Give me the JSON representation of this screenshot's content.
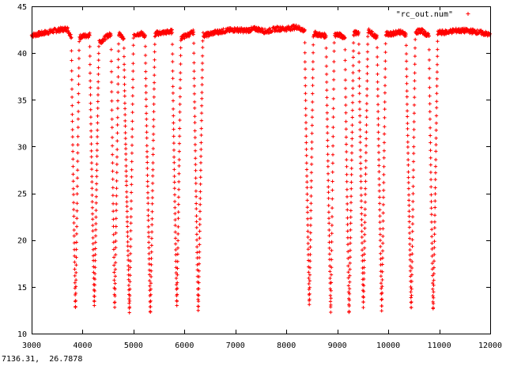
{
  "status": {
    "coordinates": "7136.31,  26.7878"
  },
  "chart_data": {
    "type": "scatter",
    "title": "",
    "xlabel": "",
    "ylabel": "",
    "xlim": [
      3000,
      12000
    ],
    "ylim": [
      10,
      45
    ],
    "x_ticks": [
      3000,
      4000,
      5000,
      6000,
      7000,
      8000,
      9000,
      10000,
      11000,
      12000
    ],
    "y_ticks": [
      10,
      15,
      20,
      25,
      30,
      35,
      40,
      45
    ],
    "grid": false,
    "legend_position": "top-right",
    "marker": "+",
    "series": [
      {
        "name": "\"rc_out.num\"",
        "color": "#ff0000",
        "baseline_x": [
          3000,
          3200,
          3450,
          3700,
          3800,
          4000,
          4200,
          4350,
          4500,
          4700,
          4850,
          5000,
          5150,
          5300,
          5450,
          5600,
          5750,
          5900,
          6050,
          6200,
          6400,
          6600,
          6800,
          7000,
          7200,
          7400,
          7600,
          7800,
          8000,
          8200,
          8350,
          8450,
          8550,
          8700,
          8850,
          9000,
          9150,
          9300,
          9450,
          9600,
          9750,
          9900,
          10050,
          10200,
          10350,
          10500,
          10650,
          10800,
          10950,
          11100,
          11300,
          11500,
          11700,
          11900,
          12000
        ],
        "baseline_y": [
          41.9,
          42.1,
          42.4,
          42.6,
          41.5,
          41.8,
          42.0,
          41.2,
          41.9,
          42.1,
          41.4,
          42.0,
          42.1,
          41.6,
          42.1,
          42.2,
          42.3,
          41.6,
          41.9,
          42.3,
          41.9,
          42.2,
          42.4,
          42.5,
          42.4,
          42.6,
          42.3,
          42.6,
          42.6,
          42.8,
          42.4,
          41.7,
          42.1,
          41.9,
          41.8,
          42.0,
          41.7,
          42.1,
          42.2,
          42.4,
          41.8,
          42.2,
          42.0,
          42.3,
          42.0,
          42.2,
          42.4,
          41.8,
          42.2,
          42.2,
          42.4,
          42.4,
          42.3,
          42.1,
          41.9
        ],
        "dips": [
          {
            "left": 3780,
            "min_x": 3860,
            "right": 3935,
            "min_y": 12.5
          },
          {
            "left": 4140,
            "min_x": 4230,
            "right": 4320,
            "min_y": 12.9
          },
          {
            "left": 4560,
            "min_x": 4630,
            "right": 4710,
            "min_y": 12.7
          },
          {
            "left": 4810,
            "min_x": 4920,
            "right": 5000,
            "min_y": 12.2
          },
          {
            "left": 5230,
            "min_x": 5330,
            "right": 5420,
            "min_y": 12.1
          },
          {
            "left": 5760,
            "min_x": 5850,
            "right": 5930,
            "min_y": 12.9
          },
          {
            "left": 6180,
            "min_x": 6270,
            "right": 6360,
            "min_y": 12.4
          },
          {
            "left": 8360,
            "min_x": 8450,
            "right": 8530,
            "min_y": 13.0
          },
          {
            "left": 8780,
            "min_x": 8870,
            "right": 8940,
            "min_y": 12.3
          },
          {
            "left": 9150,
            "min_x": 9230,
            "right": 9320,
            "min_y": 12.1
          },
          {
            "left": 9420,
            "min_x": 9510,
            "right": 9600,
            "min_y": 12.8
          },
          {
            "left": 9780,
            "min_x": 9870,
            "right": 9950,
            "min_y": 12.4
          },
          {
            "left": 10350,
            "min_x": 10450,
            "right": 10530,
            "min_y": 12.5
          },
          {
            "left": 10800,
            "min_x": 10880,
            "right": 10970,
            "min_y": 12.4
          }
        ]
      }
    ]
  }
}
